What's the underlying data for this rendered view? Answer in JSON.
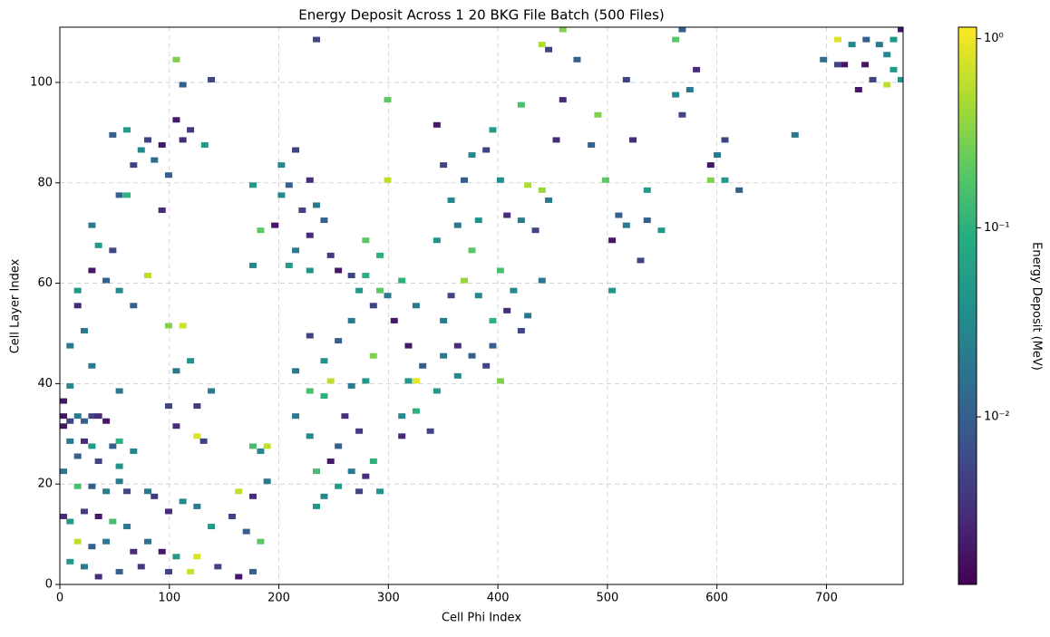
{
  "chart_data": {
    "type": "heatmap",
    "title": "Energy Deposit Across 1 20 BKG File Batch (500 Files)",
    "x_label": "Cell Phi Index",
    "y_label": "Cell Layer Index",
    "colorbar_label": "Energy Deposit (MeV)",
    "colormap": "viridis",
    "color_scale": "log",
    "clim": [
      0.0013,
      1.15
    ],
    "cticks": [
      {
        "value": 0.01,
        "label": "10⁻²"
      },
      {
        "value": 0.1,
        "label": "10⁻¹"
      },
      {
        "value": 1,
        "label": "10⁰"
      }
    ],
    "xlim": [
      0,
      770
    ],
    "ylim": [
      0,
      111
    ],
    "xticks": [
      0,
      100,
      200,
      300,
      400,
      500,
      600,
      700
    ],
    "yticks": [
      0,
      20,
      40,
      60,
      80,
      100
    ],
    "grid": true,
    "x": [
      0,
      0,
      0,
      6,
      13,
      19,
      26,
      32,
      39,
      6,
      19,
      26,
      45,
      51,
      0,
      13,
      32,
      51,
      64,
      13,
      26,
      39,
      51,
      58,
      77,
      0,
      6,
      19,
      32,
      45,
      58,
      13,
      26,
      39,
      64,
      77,
      90,
      103,
      6,
      19,
      32,
      51,
      71,
      96,
      116,
      122,
      141,
      160,
      173,
      180,
      167,
      154,
      135,
      122,
      109,
      96,
      83,
      160,
      173,
      186,
      180,
      186,
      173,
      122,
      128,
      103,
      96,
      122,
      135,
      116,
      103,
      96,
      109,
      77,
      64,
      51,
      39,
      26,
      13,
      19,
      6,
      26,
      6,
      51,
      13,
      45,
      32,
      45,
      58,
      71,
      77,
      90,
      64,
      83,
      96,
      109,
      103,
      116,
      109,
      135,
      103,
      51,
      58,
      90,
      26,
      129,
      173,
      173,
      180,
      193,
      199,
      206,
      212,
      199,
      218,
      225,
      231,
      238,
      225,
      212,
      206,
      225,
      244,
      251,
      263,
      270,
      276,
      289,
      283,
      263,
      251,
      238,
      225,
      212,
      225,
      238,
      244,
      263,
      276,
      283,
      270,
      251,
      225,
      212,
      231,
      238,
      251,
      263,
      276,
      289,
      283,
      231,
      270,
      244,
      257,
      289,
      276,
      296,
      296,
      231,
      296,
      302,
      309,
      322,
      315,
      328,
      315,
      322,
      341,
      309,
      322,
      335,
      309,
      347,
      360,
      373,
      360,
      386,
      399,
      392,
      347,
      354,
      366,
      379,
      392,
      405,
      418,
      424,
      411,
      399,
      437,
      341,
      360,
      373,
      379,
      354,
      366,
      347,
      373,
      386,
      399,
      405,
      418,
      424,
      437,
      431,
      443,
      450,
      341,
      392,
      418,
      456,
      443,
      437,
      456,
      469,
      488,
      482,
      495,
      507,
      501,
      514,
      527,
      533,
      546,
      520,
      501,
      514,
      533,
      559,
      565,
      572,
      578,
      559,
      565,
      591,
      597,
      604,
      591,
      617,
      604,
      668,
      694,
      707,
      713,
      720,
      733,
      745,
      752,
      758,
      765,
      739,
      726,
      752,
      765,
      707,
      732,
      758
    ],
    "y": [
      36,
      33,
      31,
      32,
      33,
      32,
      33,
      33,
      32,
      28,
      28,
      27,
      27,
      28,
      22,
      25,
      24,
      23,
      26,
      19,
      19,
      18,
      20,
      18,
      18,
      13,
      12,
      14,
      13,
      12,
      11,
      8,
      7,
      8,
      6,
      8,
      6,
      5,
      4,
      3,
      1,
      2,
      3,
      2,
      2,
      5,
      3,
      1,
      2,
      8,
      10,
      13,
      11,
      15,
      16,
      14,
      17,
      18,
      17,
      20,
      26,
      27,
      27,
      29,
      28,
      31,
      35,
      35,
      38,
      44,
      42,
      51,
      51,
      61,
      55,
      58,
      60,
      62,
      58,
      50,
      47,
      43,
      39,
      38,
      55,
      66,
      67,
      89,
      90,
      86,
      88,
      87,
      83,
      84,
      81,
      88,
      92,
      90,
      99,
      100,
      104,
      77,
      77,
      74,
      71,
      87,
      79,
      63,
      70,
      71,
      77,
      79,
      86,
      83,
      74,
      80,
      75,
      72,
      69,
      66,
      63,
      62,
      65,
      62,
      61,
      58,
      61,
      58,
      55,
      52,
      48,
      44,
      49,
      42,
      38,
      37,
      40,
      39,
      40,
      45,
      30,
      27,
      29,
      33,
      22,
      17,
      19,
      22,
      21,
      18,
      24,
      15,
      18,
      24,
      33,
      65,
      68,
      80,
      96,
      108,
      57,
      52,
      60,
      55,
      47,
      43,
      40,
      40,
      38,
      33,
      34,
      30,
      29,
      45,
      47,
      45,
      41,
      43,
      40,
      47,
      52,
      57,
      60,
      57,
      52,
      54,
      50,
      53,
      58,
      62,
      60,
      68,
      71,
      66,
      72,
      76,
      80,
      83,
      85,
      86,
      80,
      73,
      72,
      79,
      78,
      70,
      76,
      88,
      91,
      90,
      95,
      96,
      106,
      107,
      110,
      104,
      93,
      87,
      80,
      73,
      68,
      71,
      64,
      72,
      70,
      88,
      58,
      100,
      78,
      97,
      93,
      98,
      102,
      108,
      110,
      83,
      85,
      80,
      80,
      78,
      88,
      89,
      104,
      108,
      103,
      107,
      108,
      107,
      105,
      102,
      100,
      100,
      98,
      99,
      110,
      103,
      103,
      108
    ],
    "values": [
      0.002,
      0.002,
      0.002,
      0.005,
      0.02,
      0.01,
      0.005,
      0.003,
      0.002,
      0.02,
      0.003,
      0.05,
      0.01,
      0.1,
      0.02,
      0.01,
      0.005,
      0.04,
      0.03,
      0.15,
      0.01,
      0.02,
      0.02,
      0.005,
      0.02,
      0.003,
      0.05,
      0.004,
      0.002,
      0.15,
      0.02,
      0.6,
      0.01,
      0.02,
      0.003,
      0.015,
      0.002,
      0.05,
      0.05,
      0.02,
      0.003,
      0.01,
      0.004,
      0.005,
      0.7,
      0.8,
      0.005,
      0.002,
      0.01,
      0.2,
      0.01,
      0.005,
      0.05,
      0.02,
      0.03,
      0.003,
      0.004,
      0.6,
      0.003,
      0.02,
      0.03,
      0.6,
      0.15,
      0.8,
      0.005,
      0.003,
      0.005,
      0.004,
      0.02,
      0.04,
      0.02,
      0.3,
      0.7,
      0.6,
      0.01,
      0.03,
      0.01,
      0.002,
      0.05,
      0.02,
      0.02,
      0.02,
      0.03,
      0.02,
      0.003,
      0.005,
      0.05,
      0.01,
      0.05,
      0.03,
      0.005,
      0.002,
      0.005,
      0.015,
      0.01,
      0.003,
      0.002,
      0.004,
      0.01,
      0.005,
      0.3,
      0.01,
      0.1,
      0.003,
      0.02,
      0.05,
      0.05,
      0.03,
      0.2,
      0.002,
      0.03,
      0.01,
      0.005,
      0.03,
      0.005,
      0.003,
      0.02,
      0.01,
      0.003,
      0.02,
      0.05,
      0.04,
      0.004,
      0.002,
      0.005,
      0.05,
      0.1,
      0.2,
      0.005,
      0.02,
      0.01,
      0.04,
      0.005,
      0.02,
      0.15,
      0.1,
      0.6,
      0.02,
      0.05,
      0.3,
      0.004,
      0.01,
      0.03,
      0.02,
      0.15,
      0.03,
      0.05,
      0.02,
      0.003,
      0.04,
      0.1,
      0.05,
      0.005,
      0.002,
      0.003,
      0.1,
      0.2,
      0.6,
      0.2,
      0.005,
      0.02,
      0.002,
      0.1,
      0.02,
      0.002,
      0.01,
      0.05,
      0.9,
      0.05,
      0.03,
      0.1,
      0.005,
      0.003,
      0.02,
      0.003,
      0.01,
      0.03,
      0.005,
      0.3,
      0.01,
      0.02,
      0.005,
      0.4,
      0.03,
      0.1,
      0.003,
      0.005,
      0.02,
      0.03,
      0.15,
      0.02,
      0.04,
      0.02,
      0.2,
      0.04,
      0.03,
      0.01,
      0.005,
      0.03,
      0.005,
      0.04,
      0.003,
      0.02,
      0.5,
      0.4,
      0.005,
      0.02,
      0.003,
      0.002,
      0.05,
      0.15,
      0.003,
      0.005,
      0.5,
      0.3,
      0.01,
      0.3,
      0.01,
      0.2,
      0.01,
      0.002,
      0.02,
      0.005,
      0.01,
      0.05,
      0.003,
      0.05,
      0.005,
      0.05,
      0.03,
      0.005,
      0.02,
      0.003,
      0.2,
      0.01,
      0.002,
      0.02,
      0.05,
      0.3,
      0.01,
      0.005,
      0.02,
      0.015,
      0.8,
      0.002,
      0.03,
      0.01,
      0.02,
      0.03,
      0.05,
      0.04,
      0.005,
      0.002,
      0.6,
      0.002,
      0.005,
      0.002,
      0.05
    ]
  }
}
